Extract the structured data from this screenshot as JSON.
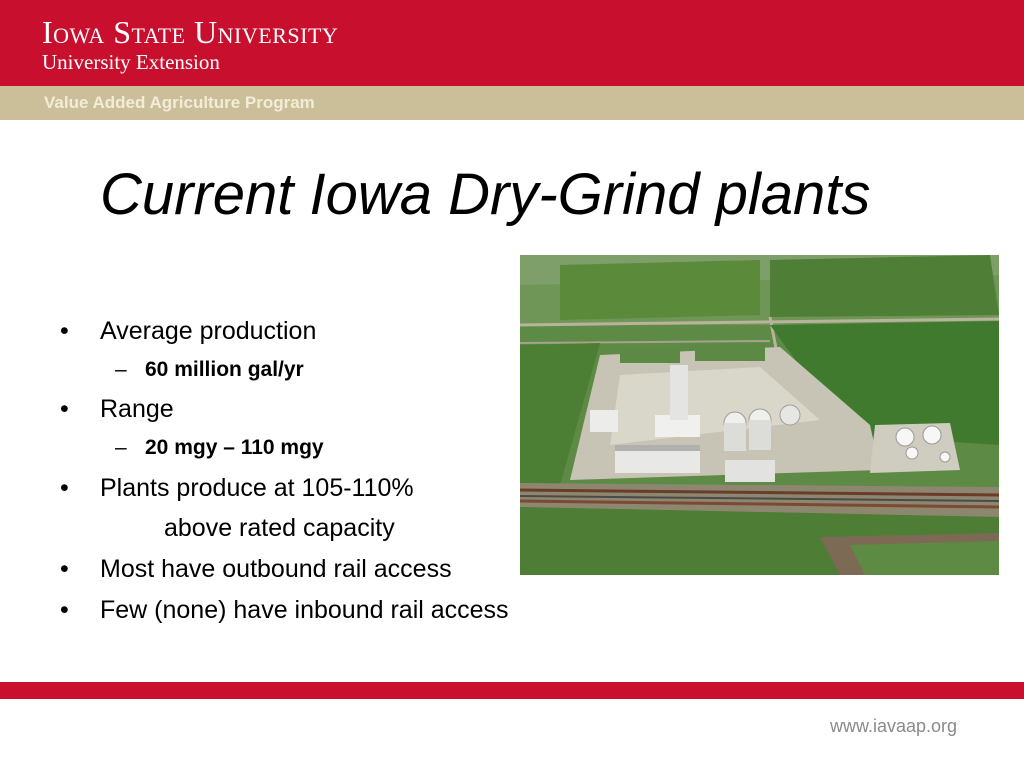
{
  "header": {
    "university": "Iowa State University",
    "extension": "University Extension",
    "program": "Value Added Agriculture Program"
  },
  "slide": {
    "title": "Current Iowa Dry-Grind plants",
    "bullets": [
      {
        "text": "Average production",
        "sub": "60 million gal/yr"
      },
      {
        "text": "Range",
        "sub": "20 mgy – 110 mgy"
      },
      {
        "text": "Plants produce at 105-110%",
        "continuation": "above rated capacity"
      },
      {
        "text": "Most have outbound rail access"
      },
      {
        "text": "Few (none) have inbound rail access"
      }
    ],
    "bullet_mark": "•",
    "sub_mark": "–"
  },
  "image": {
    "subject": "aerial-photo-ethanol-plant"
  },
  "footer": {
    "url": "www.iavaap.org"
  },
  "colors": {
    "brand_red": "#c8102e",
    "program_bar": "#cbbf9a"
  }
}
